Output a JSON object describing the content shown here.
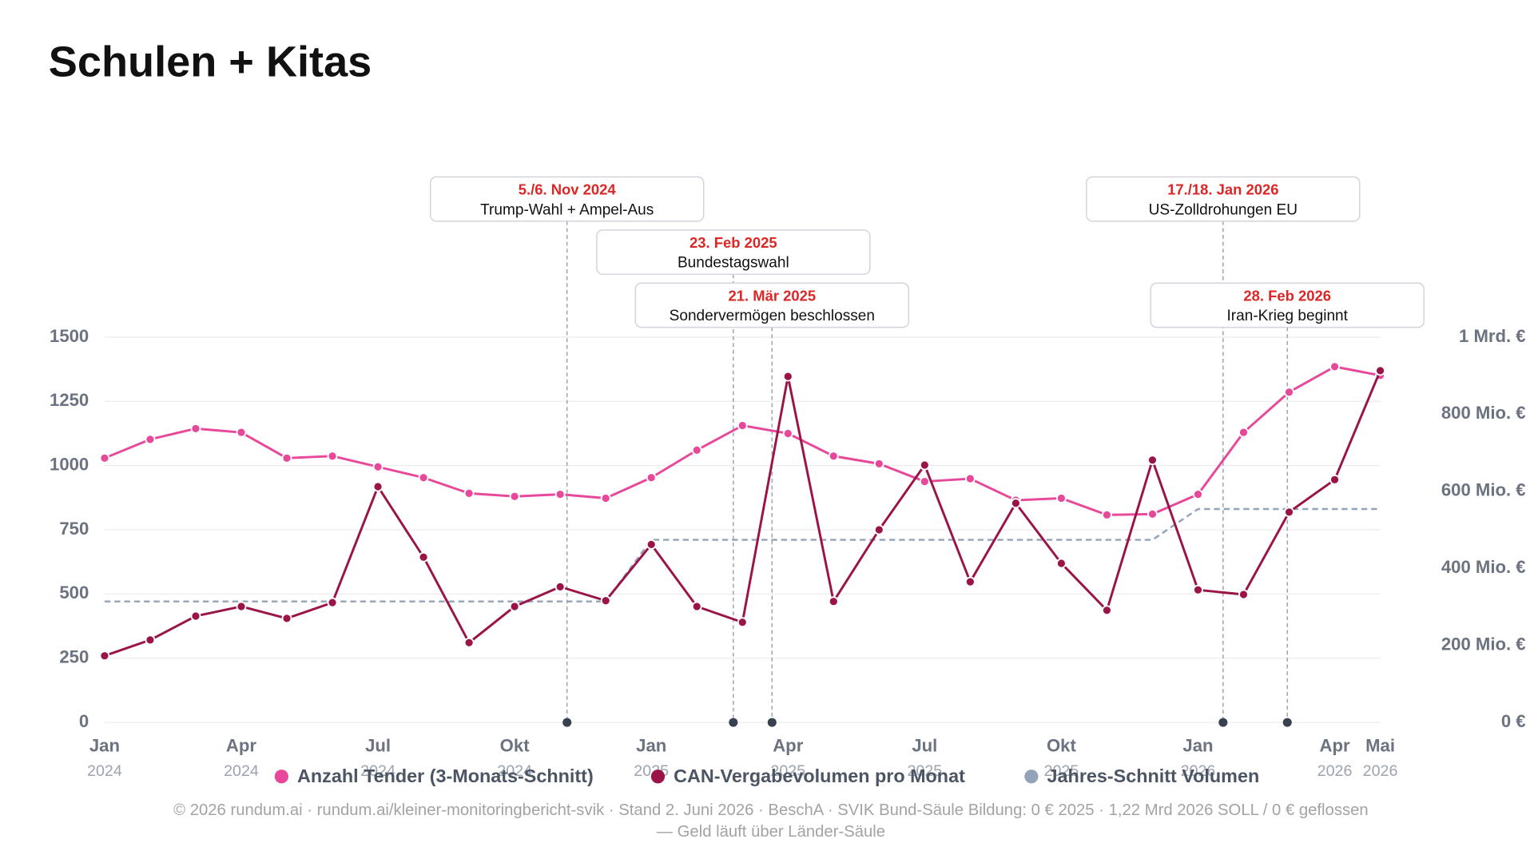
{
  "chart_data": {
    "type": "line",
    "title": "Schulen + Kitas",
    "categories": [
      {
        "month": "Jan",
        "year": "2024"
      },
      null,
      null,
      {
        "month": "Apr",
        "year": "2024"
      },
      null,
      null,
      {
        "month": "Jul",
        "year": "2024"
      },
      null,
      null,
      {
        "month": "Okt",
        "year": "2024"
      },
      null,
      null,
      {
        "month": "Jan",
        "year": "2025"
      },
      null,
      null,
      {
        "month": "Apr",
        "year": "2025"
      },
      null,
      null,
      {
        "month": "Jul",
        "year": "2025"
      },
      null,
      null,
      {
        "month": "Okt",
        "year": "2025"
      },
      null,
      null,
      {
        "month": "Jan",
        "year": "2026"
      },
      null,
      null,
      {
        "month": "Apr",
        "year": "2026"
      },
      {
        "month": "Mai",
        "year": "2026"
      }
    ],
    "ylim": [
      0,
      1500
    ],
    "yticks": [
      0,
      250,
      500,
      750,
      1000,
      1250,
      1500
    ],
    "y2lim": [
      0,
      1000000000
    ],
    "y2ticks": [
      {
        "value": 0,
        "label": "0 €"
      },
      {
        "value": 200000000,
        "label": "200 Mio. €"
      },
      {
        "value": 400000000,
        "label": "400 Mio. €"
      },
      {
        "value": 600000000,
        "label": "600 Mio. €"
      },
      {
        "value": 800000000,
        "label": "800 Mio. €"
      },
      {
        "value": 1000000000,
        "label": "1 Mrd. €"
      }
    ],
    "grid": true,
    "series": [
      {
        "name": "Anzahl Tender (3-Monats-Schnitt)",
        "color": "#e8489a",
        "markers": true,
        "values": [
          1029,
          1102,
          1144,
          1129,
          1029,
          1037,
          995,
          953,
          892,
          880,
          888,
          873,
          953,
          1060,
          1156,
          1125,
          1037,
          1007,
          938,
          949,
          865,
          873,
          808,
          811,
          888,
          1129,
          1286,
          1385,
          1351
        ]
      },
      {
        "name": "CAN-Vergabevolumen pro Monat",
        "color": "#9b1448",
        "axis": "y2",
        "markers": true,
        "values": [
          173000000,
          214000000,
          276000000,
          301000000,
          270000000,
          311000000,
          612000000,
          429000000,
          207000000,
          301000000,
          352000000,
          316000000,
          462000000,
          301000000,
          260000000,
          898000000,
          314000000,
          500000000,
          668000000,
          365000000,
          569000000,
          413000000,
          291000000,
          681000000,
          344000000,
          332000000,
          546000000,
          630000000,
          913000000
        ]
      },
      {
        "name": "Jahres-Schnitt Volumen",
        "color": "#94a3b8",
        "axis": "y2",
        "markers": false,
        "dashed": true,
        "values": [
          314000000,
          314000000,
          314000000,
          314000000,
          314000000,
          314000000,
          314000000,
          314000000,
          314000000,
          314000000,
          314000000,
          314000000,
          474000000,
          474000000,
          474000000,
          474000000,
          474000000,
          474000000,
          474000000,
          474000000,
          474000000,
          474000000,
          474000000,
          474000000,
          554000000,
          554000000,
          554000000,
          554000000,
          554000000
        ]
      }
    ],
    "events": [
      {
        "x": 10.15,
        "date": "5./6. Nov 2024",
        "label": "Trump-Wahl + Ampel-Aus"
      },
      {
        "x": 13.8,
        "date": "23. Feb 2025",
        "label": "Bundestagswahl"
      },
      {
        "x": 14.65,
        "date": "21. Mär 2025",
        "label": "Sondervermögen beschlossen"
      },
      {
        "x": 24.55,
        "date": "17./18. Jan 2026",
        "label": "US-Zolldrohungen EU"
      },
      {
        "x": 25.96,
        "date": "28. Feb 2026",
        "label": "Iran-Krieg beginnt"
      }
    ],
    "footer": [
      "© 2026 rundum.ai · rundum.ai/kleiner-monitoringbericht-svik · Stand 2. Juni 2026 · BeschA · SVIK Bund-Säule Bildung: 0 € 2025 · 1,22 Mrd 2026 SOLL / 0 € geflossen",
      "— Geld läuft über Länder-Säule"
    ]
  }
}
